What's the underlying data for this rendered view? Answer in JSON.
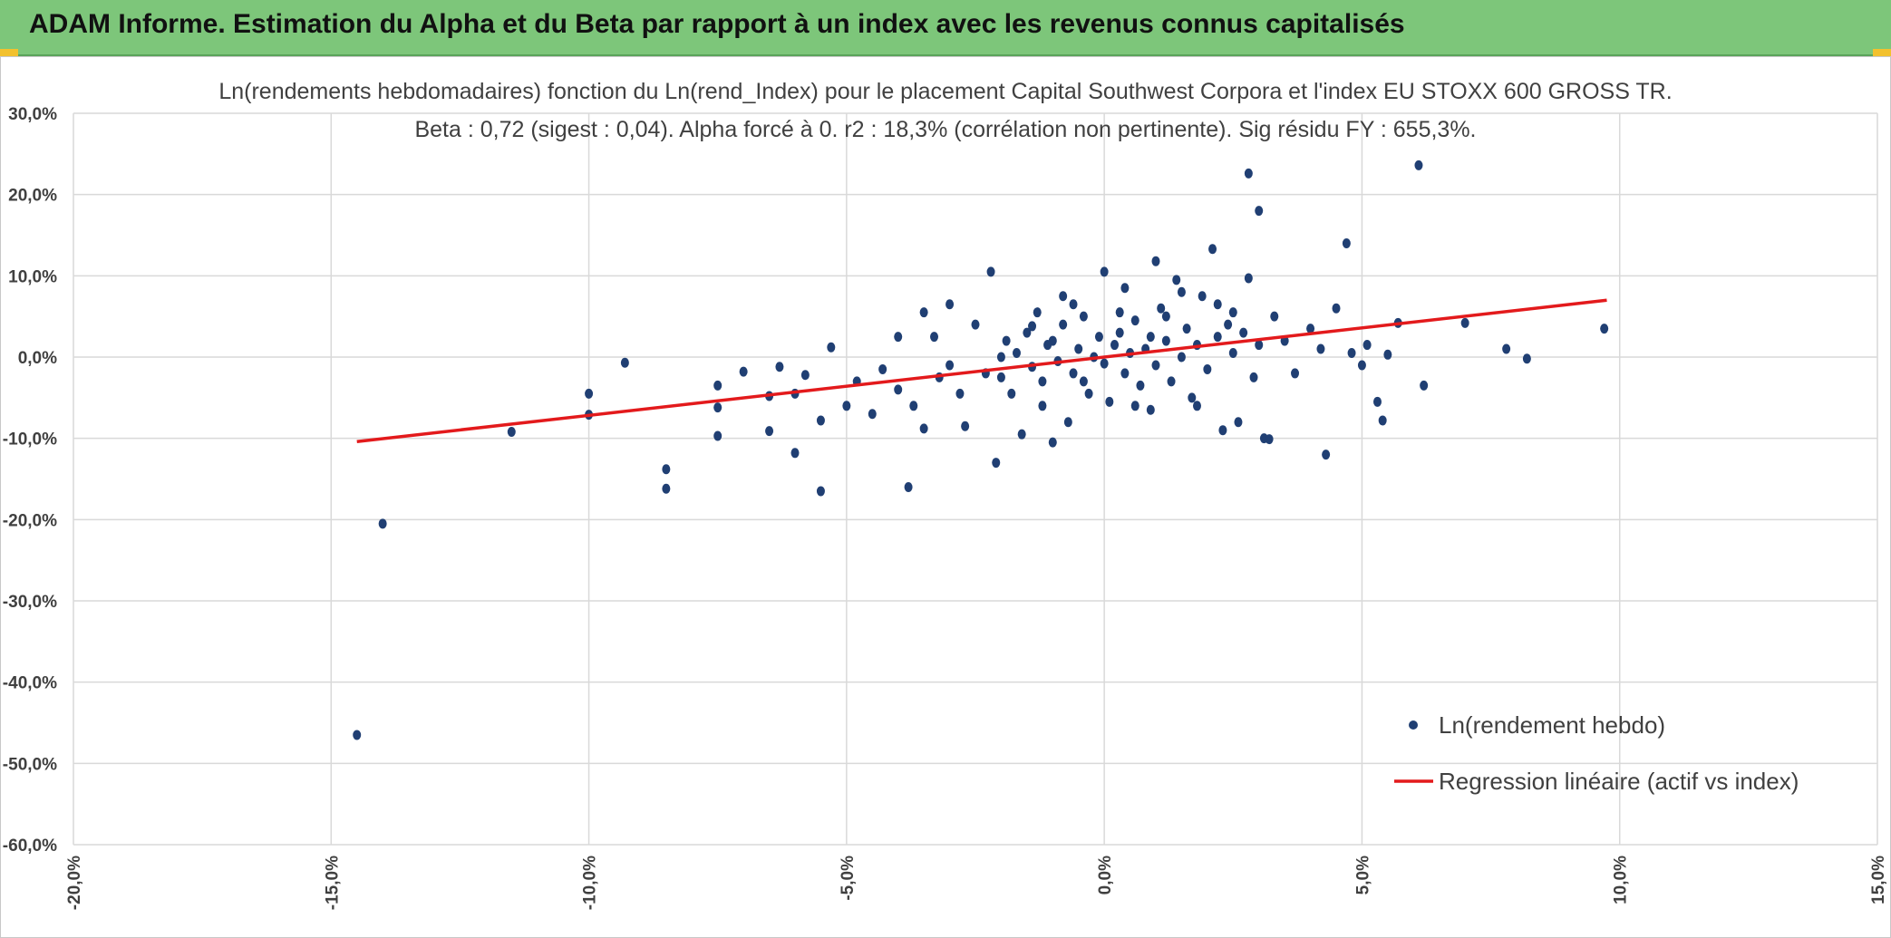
{
  "header": {
    "title": "ADAM Informe. Estimation du Alpha et du Beta par rapport à un index avec les revenus connus capitalisés"
  },
  "colors": {
    "banner": "#7dc67a",
    "points": "#203f73",
    "regression": "#e31a1c",
    "grid": "#d9d9d9"
  },
  "chart_data": {
    "type": "scatter",
    "title": "Ln(rendements hebdomadaires) fonction du Ln(rend_Index) pour le placement Capital Southwest Corpora et l'index EU STOXX 600 GROSS TR.",
    "subtitle": "Beta : 0,72 (sigest : 0,04). Alpha forcé à 0. r2 : 18,3% (corrélation non pertinente). Sig résidu FY : 655,3%.",
    "xlabel": "",
    "ylabel": "",
    "xlim": [
      -0.2,
      0.15
    ],
    "ylim": [
      -0.6,
      0.3
    ],
    "x_ticks": [
      -0.2,
      -0.15,
      -0.1,
      -0.05,
      0.0,
      0.05,
      0.1,
      0.15
    ],
    "x_tick_labels": [
      "-20,0%",
      "-15,0%",
      "-10,0%",
      "-5,0%",
      "0,0%",
      "5,0%",
      "10,0%",
      "15,0%"
    ],
    "y_ticks": [
      0.3,
      0.2,
      0.1,
      0.0,
      -0.1,
      -0.2,
      -0.3,
      -0.4,
      -0.5,
      -0.6
    ],
    "y_tick_labels": [
      "30,0%",
      "20,0%",
      "10,0%",
      "0,0%",
      "-10,0%",
      "-20,0%",
      "-30,0%",
      "-40,0%",
      "-50,0%",
      "-60,0%"
    ],
    "grid": true,
    "legend_position": "bottom-right",
    "series": [
      {
        "name": "Ln(rendement hebdo)",
        "type": "scatter",
        "points": [
          [
            -0.145,
            -0.465
          ],
          [
            -0.14,
            -0.205
          ],
          [
            -0.115,
            -0.092
          ],
          [
            -0.1,
            -0.045
          ],
          [
            -0.1,
            -0.071
          ],
          [
            -0.093,
            -0.007
          ],
          [
            -0.085,
            -0.138
          ],
          [
            -0.085,
            -0.162
          ],
          [
            -0.075,
            -0.097
          ],
          [
            -0.075,
            -0.035
          ],
          [
            -0.075,
            -0.062
          ],
          [
            -0.07,
            -0.018
          ],
          [
            -0.065,
            -0.048
          ],
          [
            -0.065,
            -0.091
          ],
          [
            -0.063,
            -0.012
          ],
          [
            -0.06,
            -0.118
          ],
          [
            -0.06,
            -0.045
          ],
          [
            -0.058,
            -0.022
          ],
          [
            -0.055,
            -0.165
          ],
          [
            -0.055,
            -0.078
          ],
          [
            -0.053,
            0.012
          ],
          [
            -0.05,
            -0.06
          ],
          [
            -0.048,
            -0.03
          ],
          [
            -0.045,
            -0.07
          ],
          [
            -0.043,
            -0.015
          ],
          [
            -0.04,
            -0.04
          ],
          [
            -0.04,
            0.025
          ],
          [
            -0.038,
            -0.16
          ],
          [
            -0.037,
            -0.06
          ],
          [
            -0.035,
            0.055
          ],
          [
            -0.035,
            -0.088
          ],
          [
            -0.033,
            0.025
          ],
          [
            -0.032,
            -0.025
          ],
          [
            -0.03,
            -0.01
          ],
          [
            -0.03,
            0.065
          ],
          [
            -0.028,
            -0.045
          ],
          [
            -0.027,
            -0.085
          ],
          [
            -0.025,
            0.04
          ],
          [
            -0.023,
            -0.02
          ],
          [
            -0.022,
            0.105
          ],
          [
            -0.021,
            -0.13
          ],
          [
            -0.02,
            -0.025
          ],
          [
            -0.019,
            0.02
          ],
          [
            -0.018,
            -0.045
          ],
          [
            -0.017,
            0.005
          ],
          [
            -0.016,
            -0.095
          ],
          [
            -0.015,
            0.03
          ],
          [
            -0.014,
            -0.012
          ],
          [
            -0.013,
            0.055
          ],
          [
            -0.012,
            -0.06
          ],
          [
            -0.012,
            -0.03
          ],
          [
            -0.01,
            0.02
          ],
          [
            -0.01,
            -0.105
          ],
          [
            -0.009,
            -0.005
          ],
          [
            -0.008,
            0.04
          ],
          [
            -0.008,
            0.075
          ],
          [
            -0.007,
            -0.08
          ],
          [
            -0.006,
            -0.02
          ],
          [
            -0.005,
            0.01
          ],
          [
            -0.004,
            0.05
          ],
          [
            -0.003,
            -0.045
          ],
          [
            -0.002,
            0.0
          ],
          [
            -0.001,
            0.025
          ],
          [
            0.0,
            -0.008
          ],
          [
            0.0,
            0.105
          ],
          [
            0.001,
            -0.055
          ],
          [
            0.002,
            0.015
          ],
          [
            0.003,
            0.03
          ],
          [
            0.004,
            -0.02
          ],
          [
            0.005,
            0.005
          ],
          [
            0.006,
            0.045
          ],
          [
            0.007,
            -0.035
          ],
          [
            0.008,
            0.01
          ],
          [
            0.009,
            0.025
          ],
          [
            0.01,
            0.118
          ],
          [
            0.01,
            -0.01
          ],
          [
            0.011,
            0.06
          ],
          [
            0.012,
            0.02
          ],
          [
            0.013,
            -0.03
          ],
          [
            0.014,
            0.095
          ],
          [
            0.015,
            0.0
          ],
          [
            0.016,
            0.035
          ],
          [
            0.017,
            -0.05
          ],
          [
            0.018,
            0.015
          ],
          [
            0.019,
            0.075
          ],
          [
            0.02,
            -0.015
          ],
          [
            0.021,
            0.133
          ],
          [
            0.022,
            0.025
          ],
          [
            0.023,
            -0.09
          ],
          [
            0.024,
            0.04
          ],
          [
            0.025,
            0.005
          ],
          [
            0.026,
            -0.08
          ],
          [
            0.027,
            0.03
          ],
          [
            0.028,
            0.097
          ],
          [
            0.029,
            -0.025
          ],
          [
            0.028,
            0.226
          ],
          [
            0.03,
            0.18
          ],
          [
            0.03,
            0.015
          ],
          [
            0.031,
            -0.1
          ],
          [
            0.032,
            -0.101
          ],
          [
            0.033,
            0.05
          ],
          [
            0.035,
            0.02
          ],
          [
            0.037,
            -0.02
          ],
          [
            0.04,
            0.035
          ],
          [
            0.042,
            0.01
          ],
          [
            0.043,
            -0.12
          ],
          [
            0.045,
            0.06
          ],
          [
            0.047,
            0.14
          ],
          [
            0.048,
            0.005
          ],
          [
            0.05,
            -0.01
          ],
          [
            0.051,
            0.015
          ],
          [
            0.053,
            -0.055
          ],
          [
            0.054,
            -0.078
          ],
          [
            0.055,
            0.003
          ],
          [
            0.057,
            0.042
          ],
          [
            0.061,
            0.236
          ],
          [
            0.062,
            -0.035
          ],
          [
            0.07,
            0.042
          ],
          [
            0.078,
            0.01
          ],
          [
            0.082,
            -0.002
          ],
          [
            0.097,
            0.035
          ],
          [
            -0.004,
            -0.03
          ],
          [
            0.003,
            0.055
          ],
          [
            0.006,
            -0.06
          ],
          [
            0.012,
            0.05
          ],
          [
            0.018,
            -0.06
          ],
          [
            0.022,
            0.065
          ],
          [
            -0.02,
            0.0
          ],
          [
            -0.014,
            0.038
          ],
          [
            0.009,
            -0.065
          ],
          [
            0.015,
            0.08
          ],
          [
            -0.006,
            0.065
          ],
          [
            0.004,
            0.085
          ],
          [
            0.025,
            0.055
          ],
          [
            -0.011,
            0.015
          ]
        ]
      },
      {
        "name": "Regression linéaire (actif vs index)",
        "type": "line",
        "points": [
          [
            -0.145,
            -0.104
          ],
          [
            0.0975,
            0.07
          ]
        ]
      }
    ]
  }
}
